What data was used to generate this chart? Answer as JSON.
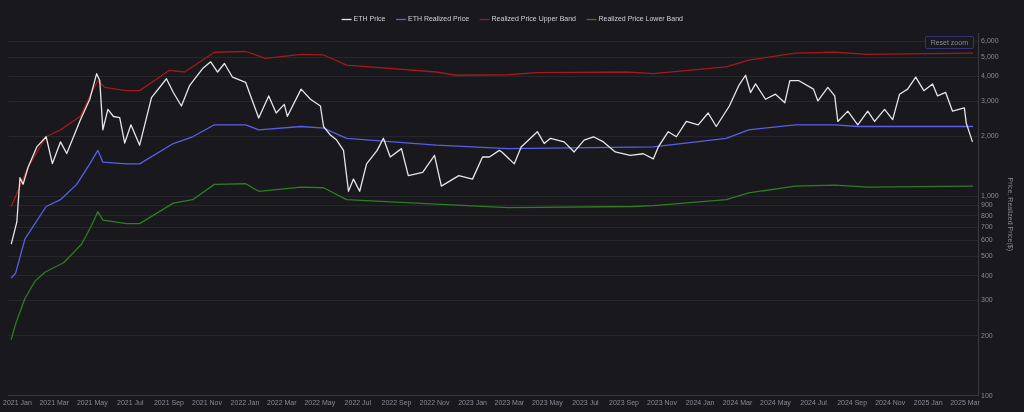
{
  "chart_data": {
    "type": "line",
    "ylabel": "Price, Realized Price($)",
    "log": "y",
    "grid": "y",
    "legend": "top",
    "marker": "none",
    "line_style": "solid",
    "annotations": [
      "Reset zoom"
    ],
    "xlim": [
      "2020-12-18",
      "2025-03-22"
    ],
    "xticks": [
      {
        "value": "2021-01-01",
        "label": "2021 Jan"
      },
      {
        "value": "2021-03-01",
        "label": "2021 Mar"
      },
      {
        "value": "2021-05-01",
        "label": "2021 May"
      },
      {
        "value": "2021-07-01",
        "label": "2021 Jul"
      },
      {
        "value": "2021-09-01",
        "label": "2021 Sep"
      },
      {
        "value": "2021-11-01",
        "label": "2021 Nov"
      },
      {
        "value": "2022-01-01",
        "label": "2022 Jan"
      },
      {
        "value": "2022-03-01",
        "label": "2022 Mar"
      },
      {
        "value": "2022-05-01",
        "label": "2022 May"
      },
      {
        "value": "2022-07-01",
        "label": "2022 Jul"
      },
      {
        "value": "2022-09-01",
        "label": "2022 Sep"
      },
      {
        "value": "2022-11-01",
        "label": "2022 Nov"
      },
      {
        "value": "2023-01-01",
        "label": "2023 Jan"
      },
      {
        "value": "2023-03-01",
        "label": "2023 Mar"
      },
      {
        "value": "2023-05-01",
        "label": "2023 May"
      },
      {
        "value": "2023-07-01",
        "label": "2023 Jul"
      },
      {
        "value": "2023-09-01",
        "label": "2023 Sep"
      },
      {
        "value": "2023-11-01",
        "label": "2023 Nov"
      },
      {
        "value": "2024-01-01",
        "label": "2024 Jan"
      },
      {
        "value": "2024-03-01",
        "label": "2024 Mar"
      },
      {
        "value": "2024-05-01",
        "label": "2024 May"
      },
      {
        "value": "2024-07-01",
        "label": "2024 Jul"
      },
      {
        "value": "2024-09-01",
        "label": "2024 Sep"
      },
      {
        "value": "2024-11-01",
        "label": "2024 Nov"
      },
      {
        "value": "2025-01-01",
        "label": "2025 Jan"
      },
      {
        "value": "2025-03-01",
        "label": "2025 Mar"
      }
    ],
    "ylim": [
      100,
      6600
    ],
    "yticks": [
      100,
      200,
      300,
      400,
      500,
      600,
      700,
      800,
      900,
      {
        "value": 1000,
        "label": "1,000"
      },
      {
        "value": 2000,
        "label": "2,000"
      },
      {
        "value": 3000,
        "label": "3,000"
      },
      {
        "value": 4000,
        "label": "4,000"
      },
      {
        "value": 5000,
        "label": "5,000"
      },
      {
        "value": 6000,
        "label": "6,000"
      }
    ],
    "series": [
      {
        "name": "ETH Price",
        "color": "#e6e6e6",
        "x": [
          "2020-12-22",
          "2020-12-31",
          "2021-01-05",
          "2021-01-10",
          "2021-01-18",
          "2021-02-01",
          "2021-02-16",
          "2021-02-26",
          "2021-03-11",
          "2021-03-21",
          "2021-04-12",
          "2021-04-27",
          "2021-05-08",
          "2021-05-13",
          "2021-05-18",
          "2021-05-26",
          "2021-06-04",
          "2021-06-14",
          "2021-06-22",
          "2021-07-02",
          "2021-07-16",
          "2021-08-04",
          "2021-08-28",
          "2021-09-08",
          "2021-09-21",
          "2021-10-04",
          "2021-10-25",
          "2021-11-07",
          "2021-11-18",
          "2021-11-29",
          "2021-12-12",
          "2022-01-02",
          "2022-01-10",
          "2022-01-23",
          "2022-02-08",
          "2022-02-20",
          "2022-03-05",
          "2022-03-10",
          "2022-04-01",
          "2022-04-16",
          "2022-05-02",
          "2022-05-07",
          "2022-05-18",
          "2022-05-28",
          "2022-06-08",
          "2022-06-16",
          "2022-06-24",
          "2022-07-04",
          "2022-07-15",
          "2022-08-01",
          "2022-08-11",
          "2022-08-22",
          "2022-09-09",
          "2022-09-20",
          "2022-10-13",
          "2022-11-01",
          "2022-11-12",
          "2022-12-10",
          "2023-01-01",
          "2023-01-17",
          "2023-01-28",
          "2023-02-13",
          "2023-02-17",
          "2023-03-09",
          "2023-03-20",
          "2023-04-15",
          "2023-04-26",
          "2023-05-06",
          "2023-05-28",
          "2023-06-13",
          "2023-06-29",
          "2023-07-14",
          "2023-07-30",
          "2023-08-18",
          "2023-09-11",
          "2023-10-02",
          "2023-10-18",
          "2023-10-26",
          "2023-11-11",
          "2023-11-24",
          "2023-12-10",
          "2023-12-29",
          "2024-01-14",
          "2024-01-27",
          "2024-02-17",
          "2024-03-03",
          "2024-03-14",
          "2024-03-22",
          "2024-03-30",
          "2024-04-15",
          "2024-05-01",
          "2024-05-16",
          "2024-05-24",
          "2024-06-07",
          "2024-07-01",
          "2024-07-08",
          "2024-07-24",
          "2024-08-04",
          "2024-08-09",
          "2024-08-25",
          "2024-09-10",
          "2024-09-26",
          "2024-10-07",
          "2024-10-23",
          "2024-11-05",
          "2024-11-16",
          "2024-11-29",
          "2024-12-12",
          "2024-12-25",
          "2025-01-08",
          "2025-01-16",
          "2025-01-29",
          "2025-02-09",
          "2025-02-28",
          "2025-03-03",
          "2025-03-13"
        ],
        "values": [
          575,
          745,
          1240,
          1150,
          1400,
          1770,
          1990,
          1460,
          1875,
          1640,
          2425,
          3070,
          4125,
          3810,
          2155,
          2730,
          2515,
          2480,
          1850,
          2285,
          1805,
          3130,
          3890,
          3320,
          2840,
          3590,
          4375,
          4730,
          4205,
          4640,
          3960,
          3735,
          3190,
          2470,
          3190,
          2620,
          2895,
          2520,
          3450,
          3070,
          2840,
          2240,
          2030,
          1915,
          1700,
          1060,
          1220,
          1060,
          1455,
          1700,
          1955,
          1575,
          1735,
          1270,
          1320,
          1605,
          1125,
          1270,
          1220,
          1575,
          1575,
          1700,
          1670,
          1455,
          1770,
          2110,
          1840,
          1955,
          1875,
          1670,
          1915,
          1990,
          1875,
          1670,
          1605,
          1635,
          1540,
          1770,
          2110,
          1990,
          2375,
          2285,
          2620,
          2240,
          2840,
          3590,
          4050,
          3320,
          3665,
          3070,
          3255,
          2950,
          3810,
          3810,
          3450,
          3010,
          3520,
          3190,
          2375,
          2675,
          2285,
          2675,
          2375,
          2730,
          2425,
          3255,
          3450,
          3960,
          3390,
          3665,
          3190,
          3320,
          2675,
          2780,
          2330,
          1875
        ]
      },
      {
        "name": "ETH Realized Price",
        "color": "#5b5ee8",
        "x": [
          "2020-12-22",
          "2020-12-29",
          "2021-01-13",
          "2021-02-16",
          "2021-03-11",
          "2021-04-06",
          "2021-04-27",
          "2021-05-10",
          "2021-05-18",
          "2021-06-25",
          "2021-07-16",
          "2021-09-08",
          "2021-10-09",
          "2021-11-13",
          "2022-01-02",
          "2022-01-23",
          "2022-04-01",
          "2022-05-07",
          "2022-06-13",
          "2022-11-04",
          "2023-02-27",
          "2023-10-18",
          "2024-02-12",
          "2024-03-19",
          "2024-06-02",
          "2024-08-04",
          "2024-09-10",
          "2025-03-14"
        ],
        "values": [
          389,
          412,
          611,
          889,
          962,
          1148,
          1455,
          1700,
          1483,
          1455,
          1455,
          1840,
          1990,
          2285,
          2285,
          2155,
          2240,
          2200,
          1955,
          1805,
          1735,
          1770,
          1955,
          2155,
          2285,
          2285,
          2240,
          2240
        ]
      },
      {
        "name": "Realized Price Upper Band",
        "color": "#a3191c",
        "x": [
          "2020-12-22",
          "2021-01-18",
          "2021-02-16",
          "2021-03-11",
          "2021-04-12",
          "2021-04-30",
          "2021-05-10",
          "2021-05-21",
          "2021-06-25",
          "2021-07-16",
          "2021-09-02",
          "2021-09-26",
          "2021-11-13",
          "2022-01-02",
          "2022-02-03",
          "2022-04-01",
          "2022-05-07",
          "2022-06-13",
          "2022-11-04",
          "2022-12-05",
          "2023-02-27",
          "2023-04-15",
          "2023-09-06",
          "2023-10-18",
          "2024-02-12",
          "2024-03-19",
          "2024-06-02",
          "2024-08-04",
          "2024-09-26",
          "2025-03-14"
        ],
        "values": [
          889,
          1400,
          1990,
          2155,
          2520,
          3320,
          3810,
          3520,
          3390,
          3390,
          4290,
          4205,
          5285,
          5330,
          4925,
          5160,
          5120,
          4550,
          4205,
          4050,
          4075,
          4175,
          4205,
          4125,
          4465,
          4830,
          5225,
          5285,
          5160,
          5225
        ]
      },
      {
        "name": "Realized Price Lower Band",
        "color": "#2f7d22",
        "x": [
          "2020-12-22",
          "2020-12-29",
          "2021-01-13",
          "2021-01-29",
          "2021-02-14",
          "2021-03-16",
          "2021-04-14",
          "2021-04-30",
          "2021-05-10",
          "2021-05-18",
          "2021-06-25",
          "2021-07-16",
          "2021-09-08",
          "2021-10-09",
          "2021-11-13",
          "2022-01-02",
          "2022-01-23",
          "2022-04-01",
          "2022-05-07",
          "2022-06-13",
          "2022-11-04",
          "2023-02-27",
          "2023-09-16",
          "2023-10-18",
          "2024-02-12",
          "2024-03-19",
          "2024-06-02",
          "2024-08-04",
          "2024-09-26",
          "2025-03-14"
        ],
        "values": [
          191,
          229,
          307,
          375,
          416,
          464,
          576,
          716,
          838,
          759,
          729,
          729,
          924,
          962,
          1148,
          1156,
          1060,
          1112,
          1104,
          962,
          914,
          878,
          889,
          899,
          962,
          1040,
          1125,
          1138,
          1112,
          1125
        ]
      }
    ]
  }
}
